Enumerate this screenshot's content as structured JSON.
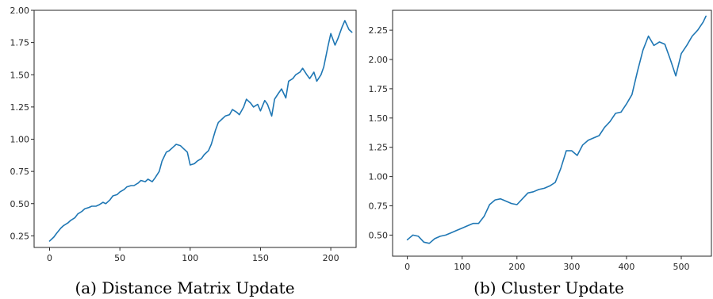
{
  "chart_data": [
    {
      "type": "line",
      "caption": "(a) Distance Matrix Update",
      "xlabel": "",
      "ylabel": "",
      "xlim": [
        -11,
        218
      ],
      "ylim": [
        0.16,
        2.0
      ],
      "xticks": [
        0,
        50,
        100,
        150,
        200
      ],
      "yticks": [
        0.25,
        0.5,
        0.75,
        1.0,
        1.25,
        1.5,
        1.75,
        2.0
      ],
      "grid": false,
      "series": [
        {
          "color": "#1f77b4",
          "x": [
            0,
            3,
            5,
            8,
            10,
            13,
            15,
            18,
            20,
            23,
            25,
            28,
            30,
            33,
            35,
            38,
            40,
            43,
            45,
            48,
            50,
            53,
            55,
            58,
            60,
            63,
            65,
            68,
            70,
            73,
            75,
            78,
            80,
            83,
            85,
            88,
            90,
            93,
            95,
            98,
            100,
            103,
            105,
            108,
            110,
            113,
            115,
            118,
            120,
            123,
            125,
            128,
            130,
            133,
            135,
            138,
            140,
            143,
            145,
            148,
            150,
            153,
            155,
            158,
            160,
            163,
            165,
            168,
            170,
            173,
            175,
            178,
            180,
            183,
            185,
            188,
            190,
            193,
            195,
            198,
            200,
            203,
            205,
            208,
            210,
            213,
            215
          ],
          "y": [
            0.21,
            0.24,
            0.27,
            0.31,
            0.33,
            0.35,
            0.37,
            0.39,
            0.42,
            0.44,
            0.46,
            0.47,
            0.48,
            0.48,
            0.49,
            0.51,
            0.5,
            0.53,
            0.56,
            0.57,
            0.59,
            0.61,
            0.63,
            0.64,
            0.64,
            0.66,
            0.68,
            0.67,
            0.69,
            0.67,
            0.7,
            0.75,
            0.83,
            0.9,
            0.91,
            0.94,
            0.96,
            0.95,
            0.93,
            0.9,
            0.8,
            0.81,
            0.83,
            0.85,
            0.88,
            0.91,
            0.96,
            1.07,
            1.13,
            1.16,
            1.18,
            1.19,
            1.23,
            1.21,
            1.19,
            1.25,
            1.31,
            1.28,
            1.25,
            1.27,
            1.22,
            1.3,
            1.27,
            1.18,
            1.31,
            1.36,
            1.39,
            1.32,
            1.45,
            1.47,
            1.5,
            1.52,
            1.55,
            1.5,
            1.47,
            1.52,
            1.45,
            1.5,
            1.56,
            1.72,
            1.82,
            1.73,
            1.78,
            1.87,
            1.92,
            1.85,
            1.83
          ]
        }
      ]
    },
    {
      "type": "line",
      "caption": "(b) Cluster Update",
      "xlabel": "",
      "ylabel": "",
      "xlim": [
        -27,
        555
      ],
      "ylim": [
        0.32,
        2.42
      ],
      "xticks": [
        0,
        100,
        200,
        300,
        400,
        500
      ],
      "yticks": [
        0.5,
        0.75,
        1.0,
        1.25,
        1.5,
        1.75,
        2.0,
        2.25
      ],
      "grid": false,
      "series": [
        {
          "color": "#1f77b4",
          "x": [
            0,
            10,
            20,
            30,
            40,
            50,
            60,
            70,
            80,
            90,
            100,
            110,
            120,
            130,
            140,
            150,
            160,
            170,
            180,
            190,
            200,
            210,
            220,
            230,
            240,
            250,
            260,
            270,
            280,
            290,
            300,
            310,
            320,
            330,
            340,
            350,
            360,
            370,
            380,
            390,
            400,
            410,
            420,
            430,
            440,
            450,
            460,
            470,
            480,
            490,
            500,
            510,
            520,
            530,
            540,
            545
          ],
          "y": [
            0.46,
            0.5,
            0.49,
            0.44,
            0.43,
            0.47,
            0.49,
            0.5,
            0.52,
            0.54,
            0.56,
            0.58,
            0.6,
            0.6,
            0.66,
            0.76,
            0.8,
            0.81,
            0.79,
            0.77,
            0.76,
            0.81,
            0.86,
            0.87,
            0.89,
            0.9,
            0.92,
            0.95,
            1.07,
            1.22,
            1.22,
            1.18,
            1.27,
            1.31,
            1.33,
            1.35,
            1.42,
            1.47,
            1.54,
            1.55,
            1.62,
            1.7,
            1.9,
            2.08,
            2.2,
            2.12,
            2.15,
            2.13,
            2.0,
            1.86,
            2.05,
            2.12,
            2.2,
            2.25,
            2.32,
            2.37
          ]
        }
      ]
    }
  ]
}
